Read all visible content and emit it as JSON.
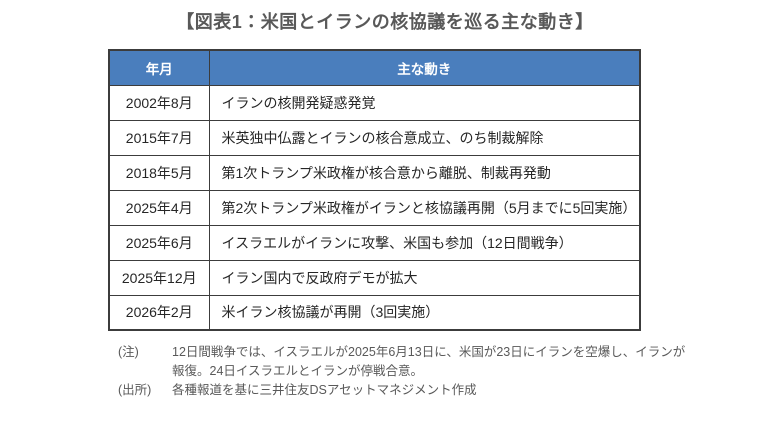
{
  "title": "【図表1：米国とイランの核協議を巡る主な動き】",
  "table": {
    "headers": [
      "年月",
      "主な動き"
    ],
    "rows": [
      {
        "date": "2002年8月",
        "event": "イランの核開発疑惑発覚"
      },
      {
        "date": "2015年7月",
        "event": "米英独中仏露とイランの核合意成立、のち制裁解除"
      },
      {
        "date": "2018年5月",
        "event": "第1次トランプ米政権が核合意から離脱、制裁再発動"
      },
      {
        "date": "2025年4月",
        "event": "第2次トランプ米政権がイランと核協議再開（5月までに5回実施）"
      },
      {
        "date": "2025年6月",
        "event": "イスラエルがイランに攻撃、米国も参加（12日間戦争）"
      },
      {
        "date": "2025年12月",
        "event": "イラン国内で反政府デモが拡大"
      },
      {
        "date": "2026年2月",
        "event": "米イラン核協議が再開（3回実施）"
      }
    ]
  },
  "notes": {
    "note_label": "(注)",
    "note_line1": "12日間戦争では、イスラエルが2025年6月13日に、米国が23日にイランを空爆し、イランが",
    "note_line2": "報復。24日イスラエルとイランが停戦合意。",
    "source_label": "(出所)",
    "source_text": "各種報道を基に三井住友DSアセットマネジメント作成"
  },
  "colors": {
    "header_bg": "#4a7ebd",
    "header_text": "#ffffff",
    "border": "#3c3c3c",
    "title_text": "#595959",
    "body_text": "#262626",
    "note_text": "#595959"
  }
}
